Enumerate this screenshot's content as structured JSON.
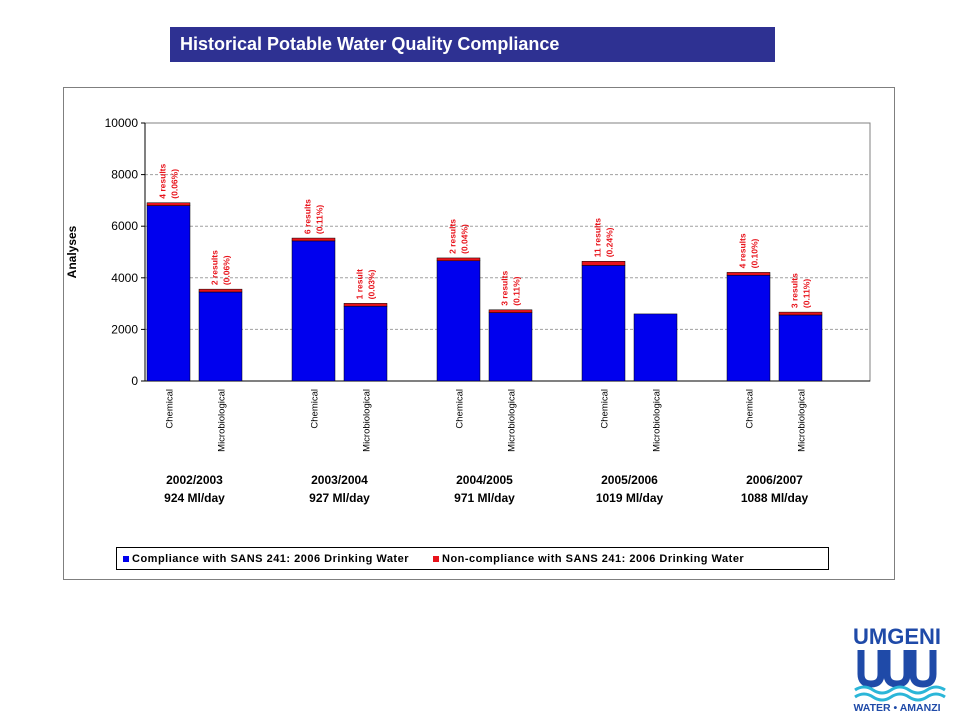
{
  "header": {
    "title": "Historical Potable Water Quality Compliance"
  },
  "colors": {
    "compliance": "#0000ee",
    "noncompliance": "#e8131b",
    "title_bg": "#2e3192",
    "logo_blue": "#1f4aa8",
    "logo_cyan": "#2bb6d8"
  },
  "logo": {
    "top_text": "UMGENI",
    "bottom_text": "WATER • AMANZI"
  },
  "chart_data": {
    "type": "bar",
    "stacked": true,
    "ylabel": "Analyses",
    "ylim": [
      0,
      10000
    ],
    "yticks": [
      "0",
      "2000",
      "4000",
      "6000",
      "8000",
      "10000"
    ],
    "grid": true,
    "legend_placement": "bottom",
    "groups": [
      {
        "period": "2002/2003",
        "flow": "924 Ml/day"
      },
      {
        "period": "2003/2004",
        "flow": "927 Ml/day"
      },
      {
        "period": "2004/2005",
        "flow": "971 Ml/day"
      },
      {
        "period": "2005/2006",
        "flow": "1019 Ml/day"
      },
      {
        "period": "2006/2007",
        "flow": "1088 Ml/day"
      }
    ],
    "categories": [
      "Chemical",
      "Microbiological"
    ],
    "series": [
      {
        "name": "Compliance with SANS 241: 2006 Drinking Water",
        "values": [
          [
            6800,
            3450
          ],
          [
            5430,
            2900
          ],
          [
            4660,
            2650
          ],
          [
            4480,
            2600
          ],
          [
            4100,
            2560
          ]
        ]
      },
      {
        "name": "Non-compliance with SANS 241: 2006 Drinking Water",
        "values": [
          [
            110,
            110
          ],
          [
            110,
            110
          ],
          [
            110,
            110
          ],
          [
            160,
            0
          ],
          [
            110,
            110
          ]
        ]
      }
    ],
    "annotations": [
      [
        [
          "4 results",
          "(0.06%)"
        ],
        [
          "2 results",
          "(0.06%)"
        ]
      ],
      [
        [
          "6 results",
          "(0.11%)"
        ],
        [
          "1 result",
          "(0.03%)"
        ]
      ],
      [
        [
          "2 results",
          "(0.04%)"
        ],
        [
          "3 results",
          "(0.11%)"
        ]
      ],
      [
        [
          "11 results",
          "(0.24%)"
        ],
        null
      ],
      [
        [
          "4 results",
          "(0.10%)"
        ],
        [
          "3 results",
          "(0.11%)"
        ]
      ]
    ]
  }
}
